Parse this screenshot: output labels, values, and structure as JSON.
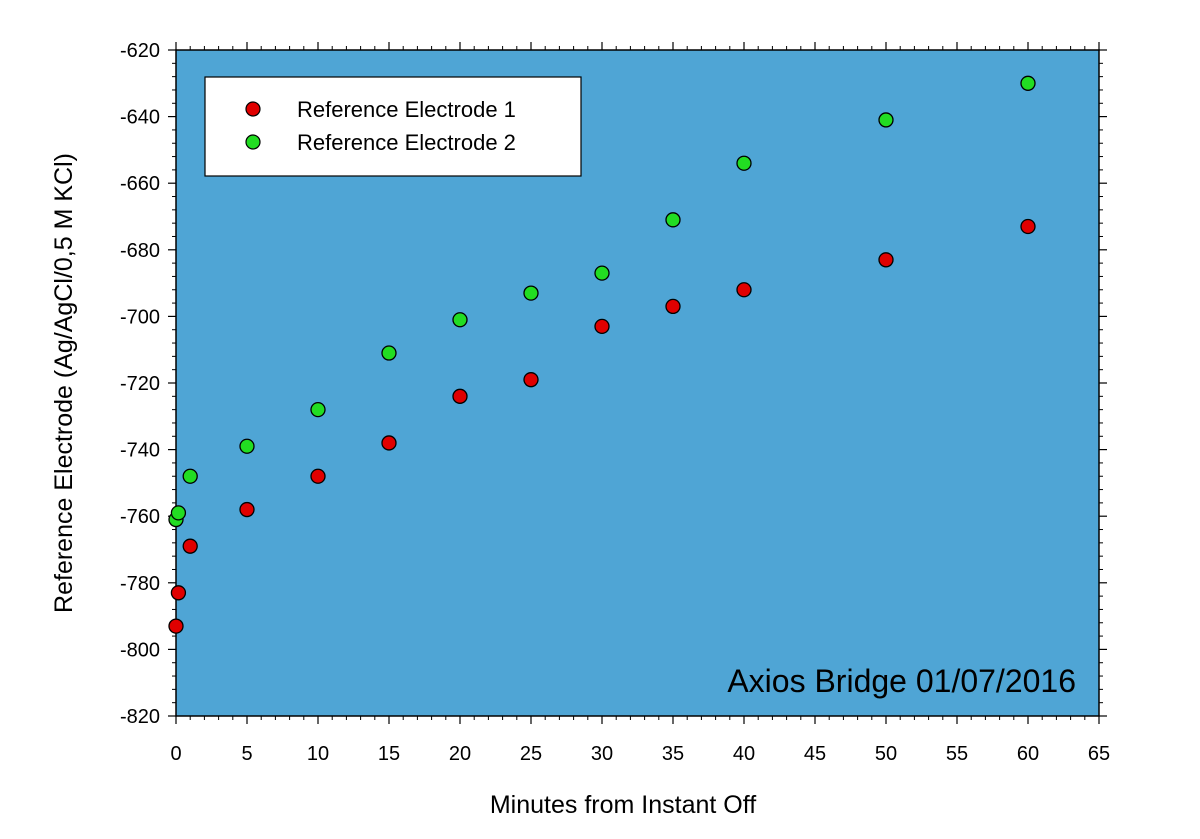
{
  "chart_data": {
    "type": "scatter",
    "xlabel": "Minutes from Instant Off",
    "ylabel": "Reference Electrode (Ag/AgCl/0,5 M KCl)",
    "xlim": [
      0,
      65
    ],
    "ylim": [
      -820,
      -620
    ],
    "xticks": [
      0,
      5,
      10,
      15,
      20,
      25,
      30,
      35,
      40,
      45,
      50,
      55,
      60,
      65
    ],
    "yticks": [
      -620,
      -640,
      -660,
      -680,
      -700,
      -720,
      -740,
      -760,
      -780,
      -800,
      -820
    ],
    "grid": false,
    "legend_position": "top-left",
    "annotation": "Axios Bridge 01/07/2016",
    "plot_background": "#4fa5d5",
    "series": [
      {
        "name": "Reference Electrode 1",
        "color": "#e00000",
        "points": [
          {
            "x": 0,
            "y": -793
          },
          {
            "x": 0.17,
            "y": -783
          },
          {
            "x": 1,
            "y": -769
          },
          {
            "x": 5,
            "y": -758
          },
          {
            "x": 10,
            "y": -748
          },
          {
            "x": 15,
            "y": -738
          },
          {
            "x": 20,
            "y": -724
          },
          {
            "x": 25,
            "y": -719
          },
          {
            "x": 30,
            "y": -703
          },
          {
            "x": 35,
            "y": -697
          },
          {
            "x": 40,
            "y": -692
          },
          {
            "x": 50,
            "y": -683
          },
          {
            "x": 60,
            "y": -673
          }
        ]
      },
      {
        "name": "Reference Electrode 2",
        "color": "#22dd22",
        "points": [
          {
            "x": 0,
            "y": -761
          },
          {
            "x": 0.17,
            "y": -759
          },
          {
            "x": 1,
            "y": -748
          },
          {
            "x": 5,
            "y": -739
          },
          {
            "x": 10,
            "y": -728
          },
          {
            "x": 15,
            "y": -711
          },
          {
            "x": 20,
            "y": -701
          },
          {
            "x": 25,
            "y": -693
          },
          {
            "x": 30,
            "y": -687
          },
          {
            "x": 35,
            "y": -671
          },
          {
            "x": 40,
            "y": -654
          },
          {
            "x": 50,
            "y": -641
          },
          {
            "x": 60,
            "y": -630
          }
        ]
      }
    ]
  }
}
